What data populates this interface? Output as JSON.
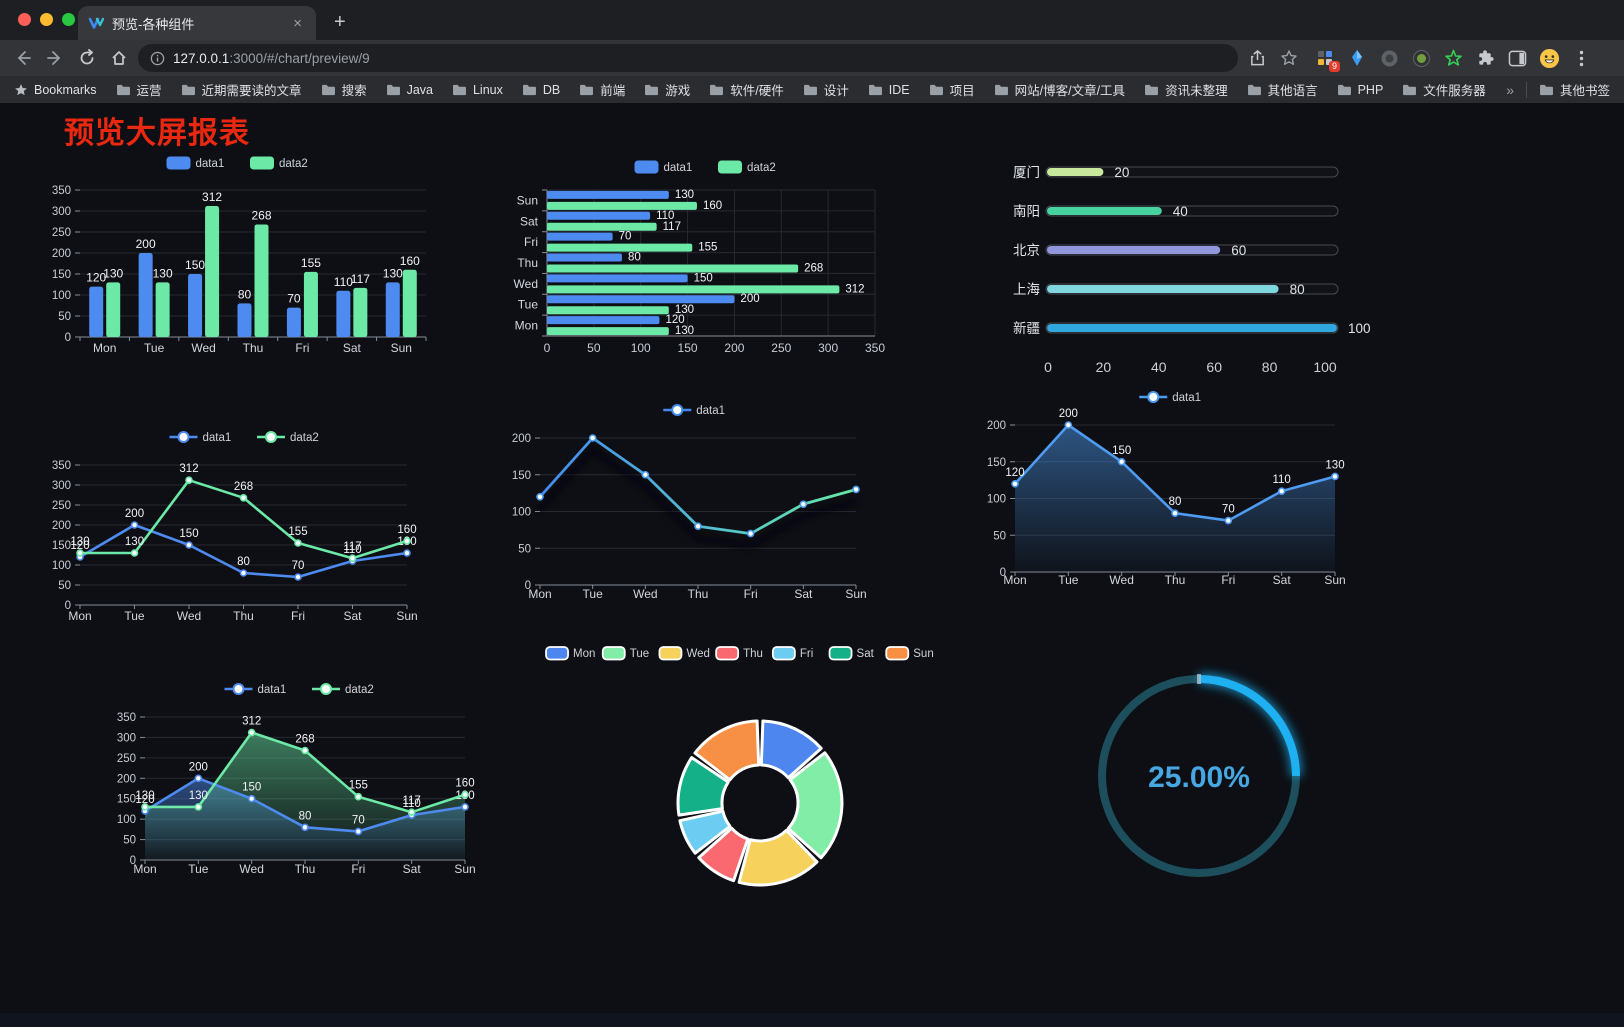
{
  "browser": {
    "tab_title": "预览-各种组件",
    "new_tab_glyph": "+",
    "close_glyph": "×",
    "url_host": "127.0.0.1",
    "url_rest": ":3000/#/chart/preview/9",
    "bookmarks_label": "Bookmarks",
    "bookmarks": [
      "运营",
      "近期需要读的文章",
      "搜索",
      "Java",
      "Linux",
      "DB",
      "前端",
      "游戏",
      "软件/硬件",
      "设计",
      "IDE",
      "项目",
      "网站/博客/文章/工具",
      "资讯未整理",
      "其他语言",
      "PHP",
      "文件服务器"
    ],
    "overflow_chevron": "»",
    "other_bookmarks": "其他书签",
    "extension_badge": "9"
  },
  "page": {
    "title": "预览大屏报表",
    "title_color": "#ea2810",
    "background": "#0d0f14"
  },
  "palette": {
    "blue": "#4e8bf0",
    "green": "#6ce9a6",
    "axis": "#878d97",
    "grid": "#262a31",
    "tick_label": "#c9cdd5",
    "value_label": "#f2f3f5",
    "legend_label": "#ced2d9"
  },
  "chart_data": {
    "bar_vertical": {
      "type": "bar",
      "categories": [
        "Mon",
        "Tue",
        "Wed",
        "Thu",
        "Fri",
        "Sat",
        "Sun"
      ],
      "series": [
        {
          "name": "data1",
          "color": "#4e8bf0",
          "values": [
            120,
            200,
            150,
            80,
            70,
            110,
            130
          ]
        },
        {
          "name": "data2",
          "color": "#6ce9a6",
          "values": [
            130,
            130,
            312,
            268,
            155,
            117,
            160
          ]
        }
      ],
      "ymax": 350,
      "ystep": 50,
      "show_labels": true,
      "legend_position": "top"
    },
    "bar_horizontal": {
      "type": "bar",
      "orientation": "horizontal",
      "categories": [
        "Mon",
        "Tue",
        "Wed",
        "Thu",
        "Fri",
        "Sat",
        "Sun"
      ],
      "series": [
        {
          "name": "data1",
          "color": "#4e8bf0",
          "values": [
            120,
            200,
            150,
            80,
            70,
            110,
            130
          ]
        },
        {
          "name": "data2",
          "color": "#6ce9a6",
          "values": [
            130,
            130,
            312,
            268,
            155,
            117,
            160
          ]
        }
      ],
      "xmax": 350,
      "xstep": 50,
      "show_labels": true,
      "legend_position": "top"
    },
    "city_progress": {
      "type": "bar",
      "style": "progress-pills",
      "max": 100,
      "ticks": [
        0,
        20,
        40,
        60,
        80,
        100
      ],
      "rows": [
        {
          "label": "厦门",
          "value": 20,
          "color": "#c8e89e"
        },
        {
          "label": "南阳",
          "value": 40,
          "color": "#46d39f"
        },
        {
          "label": "北京",
          "value": 60,
          "color": "#9297dd"
        },
        {
          "label": "上海",
          "value": 80,
          "color": "#7fd6de"
        },
        {
          "label": "新疆",
          "value": 100,
          "color": "#31a8dd"
        }
      ]
    },
    "line_double": {
      "type": "line",
      "categories": [
        "Mon",
        "Tue",
        "Wed",
        "Thu",
        "Fri",
        "Sat",
        "Sun"
      ],
      "series": [
        {
          "name": "data1",
          "color": "#4e8bf0",
          "values": [
            120,
            200,
            150,
            80,
            70,
            110,
            130
          ]
        },
        {
          "name": "data2",
          "color": "#6ce9a6",
          "values": [
            130,
            130,
            312,
            268,
            155,
            117,
            160
          ]
        }
      ],
      "ymax": 350,
      "ystep": 50,
      "show_labels": true
    },
    "line_gradient": {
      "type": "line",
      "categories": [
        "Mon",
        "Tue",
        "Wed",
        "Thu",
        "Fri",
        "Sat",
        "Sun"
      ],
      "series": [
        {
          "name": "data1",
          "color_start": "#4289f0",
          "color_mid": "#55c0cf",
          "color_end": "#66e9a4",
          "values": [
            120,
            200,
            150,
            80,
            70,
            110,
            130
          ]
        }
      ],
      "ymax": 200,
      "ystep": 50,
      "show_labels": false
    },
    "area_single": {
      "type": "area",
      "categories": [
        "Mon",
        "Tue",
        "Wed",
        "Thu",
        "Fri",
        "Sat",
        "Sun"
      ],
      "series": [
        {
          "name": "data1",
          "color": "#4e9bf2",
          "values": [
            120,
            200,
            150,
            80,
            70,
            110,
            130
          ]
        }
      ],
      "ymax": 200,
      "ystep": 50,
      "show_labels": true
    },
    "area_double": {
      "type": "area",
      "categories": [
        "Mon",
        "Tue",
        "Wed",
        "Thu",
        "Fri",
        "Sat",
        "Sun"
      ],
      "series": [
        {
          "name": "data1",
          "color": "#4e8bf0",
          "values": [
            120,
            200,
            150,
            80,
            70,
            110,
            130
          ]
        },
        {
          "name": "data2",
          "color": "#6ce9a6",
          "values": [
            130,
            130,
            312,
            268,
            155,
            117,
            160
          ]
        }
      ],
      "ymax": 350,
      "ystep": 50,
      "show_labels": true
    },
    "donut": {
      "type": "pie",
      "items": [
        {
          "name": "Mon",
          "value": 120,
          "color": "#4c86ee"
        },
        {
          "name": "Tue",
          "value": 200,
          "color": "#82eda6"
        },
        {
          "name": "Wed",
          "value": 150,
          "color": "#f6d25c"
        },
        {
          "name": "Thu",
          "value": 80,
          "color": "#f9696f"
        },
        {
          "name": "Fri",
          "value": 70,
          "color": "#6cccf2"
        },
        {
          "name": "Sat",
          "value": 110,
          "color": "#14b088"
        },
        {
          "name": "Sun",
          "value": 130,
          "color": "#f78f44"
        }
      ]
    },
    "gauge": {
      "type": "gauge",
      "text": "25.00%",
      "percent": 25,
      "color": "#1fb0f2",
      "track": "#1d4e5c",
      "text_color": "#46a7e3"
    }
  }
}
